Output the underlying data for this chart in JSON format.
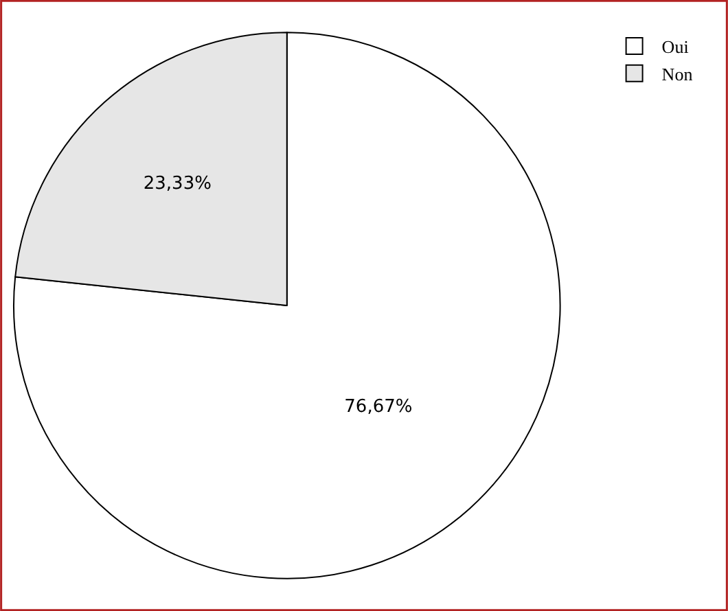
{
  "chart_data": {
    "type": "pie",
    "categories": [
      "Oui",
      "Non"
    ],
    "values": [
      76.67,
      23.33
    ],
    "colors": [
      "#ffffff",
      "#e6e6e6"
    ],
    "value_labels": [
      "76,67%",
      "23,33%"
    ],
    "legend": "top right"
  }
}
